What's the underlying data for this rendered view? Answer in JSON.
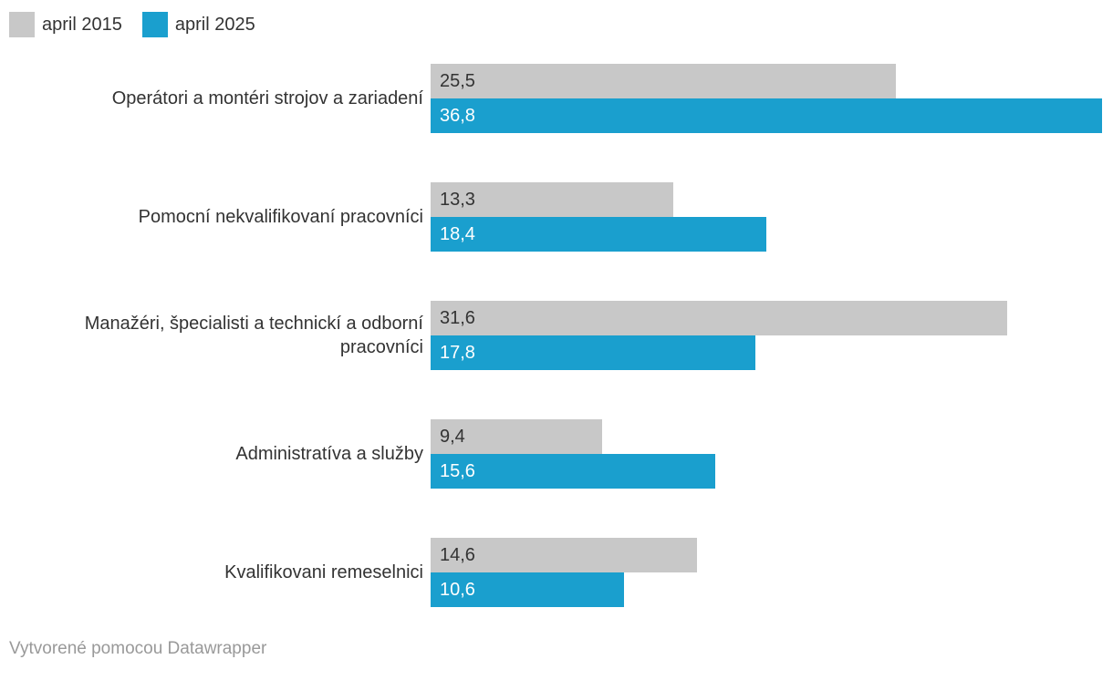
{
  "legend": {
    "items": [
      {
        "label": "april 2015",
        "color": "#c8c8c8"
      },
      {
        "label": "april 2025",
        "color": "#1a9fce"
      }
    ]
  },
  "chart_data": {
    "type": "bar",
    "orientation": "horizontal",
    "categories": [
      "Operátori a montéri strojov a zariadení",
      "Pomocní nekvalifikovaní pracovníci",
      "Manažéri, špecialisti a technickí a odborní pracovníci",
      "Administratíva a služby",
      "Kvalifikovani remeselnici"
    ],
    "series": [
      {
        "name": "april 2015",
        "color": "#c8c8c8",
        "values": [
          25.5,
          13.3,
          31.6,
          9.4,
          14.6
        ],
        "value_labels": [
          "25,5",
          "13,3",
          "31,6",
          "9,4",
          "14,6"
        ]
      },
      {
        "name": "april 2025",
        "color": "#1a9fce",
        "values": [
          36.8,
          18.4,
          17.8,
          15.6,
          10.6
        ],
        "value_labels": [
          "36,8",
          "18,4",
          "17,8",
          "15,6",
          "10,6"
        ]
      }
    ],
    "xlim": [
      0,
      37.4
    ],
    "grid": false,
    "legend_position": "top-left",
    "value_labels_inside_bars": true
  },
  "footer": {
    "attribution": "Vytvorené pomocou Datawrapper"
  }
}
